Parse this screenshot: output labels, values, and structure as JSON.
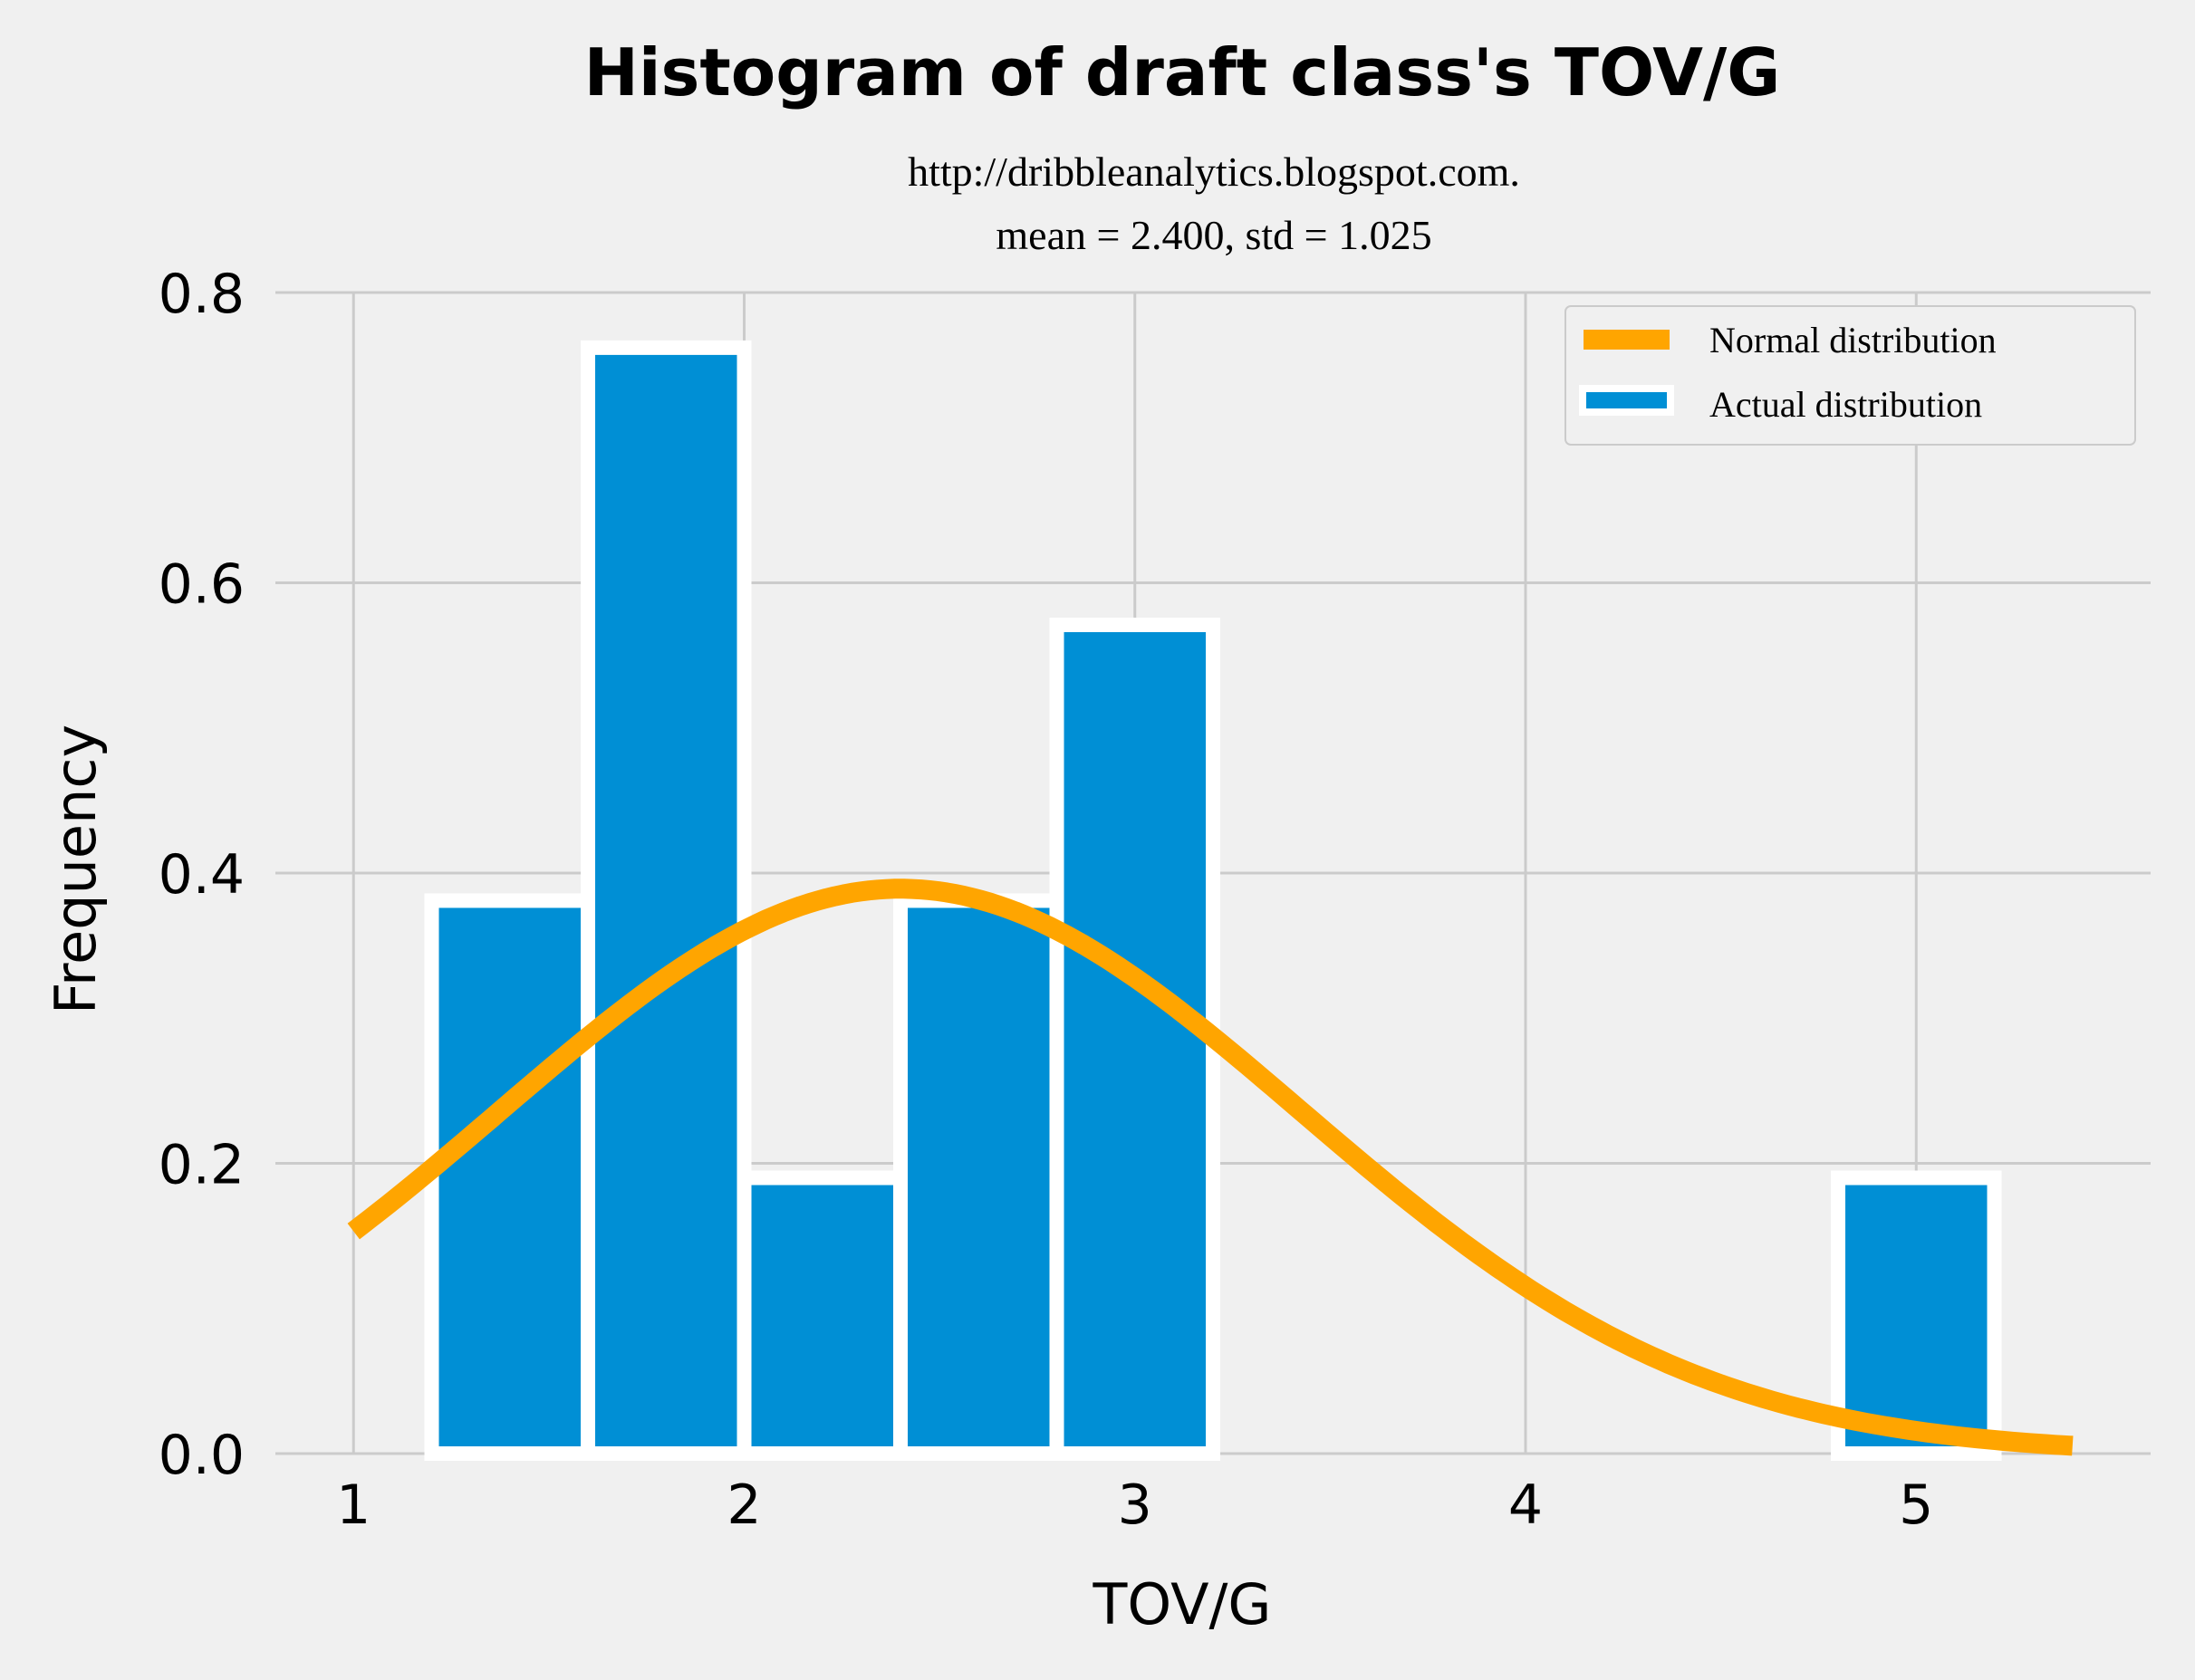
{
  "chart_data": {
    "type": "bar",
    "title": "Histogram of draft class's TOV/G",
    "subtitle_lines": [
      "http://dribbleanalytics.blogspot.com.",
      "mean = 2.400, std = 1.025"
    ],
    "xlabel": "TOV/G",
    "ylabel": "Frequency",
    "xlim": [
      0.8,
      5.6
    ],
    "ylim": [
      0,
      0.8
    ],
    "xticks": [
      1,
      2,
      3,
      4,
      5
    ],
    "xtick_labels": [
      "1",
      "2",
      "3",
      "4",
      "5"
    ],
    "yticks": [
      0,
      0.2,
      0.4,
      0.6,
      0.8
    ],
    "ytick_labels": [
      "0.0",
      "0.2",
      "0.4",
      "0.6",
      "0.8"
    ],
    "grid": true,
    "legend_position": "top-right",
    "bins": [
      {
        "x0": 1.2,
        "x1": 1.6,
        "value": 0.381
      },
      {
        "x0": 1.6,
        "x1": 2.0,
        "value": 0.762
      },
      {
        "x0": 2.0,
        "x1": 2.4,
        "value": 0.19
      },
      {
        "x0": 2.4,
        "x1": 2.8,
        "value": 0.381
      },
      {
        "x0": 2.8,
        "x1": 3.2,
        "value": 0.571
      },
      {
        "x0": 3.2,
        "x1": 3.6,
        "value": 0
      },
      {
        "x0": 3.6,
        "x1": 4.0,
        "value": 0
      },
      {
        "x0": 4.0,
        "x1": 4.4,
        "value": 0
      },
      {
        "x0": 4.4,
        "x1": 4.8,
        "value": 0
      },
      {
        "x0": 4.8,
        "x1": 5.2,
        "value": 0.19
      }
    ],
    "series": [
      {
        "name": "Normal distribution",
        "type": "line",
        "mean": 2.4,
        "std": 1.025,
        "x_range": [
          1.0,
          5.4
        ],
        "color": "#ffa500"
      },
      {
        "name": "Actual distribution",
        "type": "bar",
        "color": "#008fd5"
      }
    ],
    "colors": {
      "background": "#f0f0f0",
      "grid": "#cbcbcb",
      "bar_edge": "#ffffff"
    }
  }
}
